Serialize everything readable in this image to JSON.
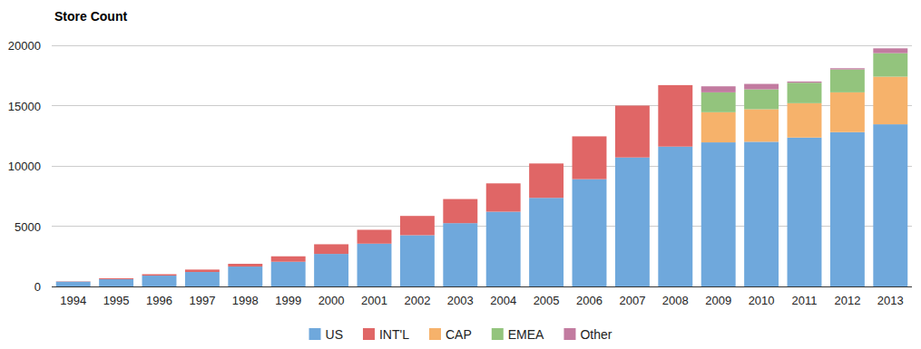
{
  "chart_data": {
    "type": "bar",
    "title": "Store Count",
    "stacked": true,
    "grid": true,
    "legend": "bottom",
    "categories": [
      "1994",
      "1995",
      "1996",
      "1997",
      "1998",
      "1999",
      "2000",
      "2001",
      "2002",
      "2003",
      "2004",
      "2005",
      "2006",
      "2007",
      "2008",
      "2009",
      "2010",
      "2011",
      "2012",
      "2013"
    ],
    "series": [
      {
        "name": "US",
        "color": "#6fa8dc",
        "values": [
          400,
          600,
          900,
          1200,
          1650,
          2050,
          2700,
          3550,
          4250,
          5250,
          6200,
          7350,
          8900,
          10700,
          11600,
          11950,
          12000,
          12350,
          12800,
          13450
        ]
      },
      {
        "name": "INT'L",
        "color": "#e06666",
        "values": [
          25,
          75,
          115,
          200,
          230,
          450,
          800,
          1150,
          1600,
          2000,
          2350,
          2850,
          3550,
          4300,
          5100,
          null,
          null,
          null,
          null,
          null
        ]
      },
      {
        "name": "CAP",
        "color": "#f6b26b",
        "values": [
          null,
          null,
          null,
          null,
          null,
          null,
          null,
          null,
          null,
          null,
          null,
          null,
          null,
          null,
          null,
          2500,
          2700,
          2850,
          3300,
          3950
        ]
      },
      {
        "name": "EMEA",
        "color": "#93c47d",
        "values": [
          null,
          null,
          null,
          null,
          null,
          null,
          null,
          null,
          null,
          null,
          null,
          null,
          null,
          null,
          null,
          1650,
          1650,
          1700,
          1900,
          1950
        ]
      },
      {
        "name": "Other",
        "color": "#c27ba0",
        "values": [
          null,
          null,
          null,
          null,
          null,
          null,
          null,
          null,
          null,
          null,
          null,
          null,
          null,
          null,
          null,
          500,
          450,
          100,
          100,
          400
        ]
      }
    ],
    "ylim": [
      0,
      20000
    ],
    "yticks": [
      0,
      5000,
      10000,
      15000,
      20000
    ]
  }
}
